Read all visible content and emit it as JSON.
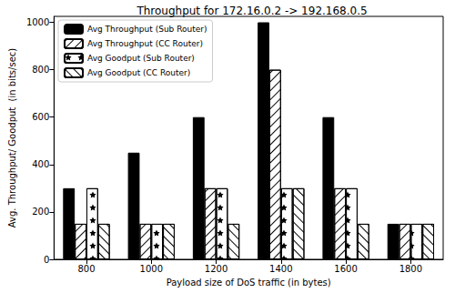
{
  "chart_data": {
    "type": "bar",
    "title": "Throughput for 172.16.0.2 -> 192.168.0.5",
    "x_label": "Payload size of DoS traffic (in bytes)",
    "y_label": "Avg. Throughput/ Goodput  (in bits/sec)",
    "categories": [
      "800",
      "1000",
      "1200",
      "1400",
      "1600",
      "1800"
    ],
    "series": [
      {
        "name": "Avg Throughput (Sub Router)",
        "color": "#000000",
        "marker": "solid",
        "values": [
          300,
          450,
          600,
          1000,
          600,
          150
        ]
      },
      {
        "name": "Avg Throughput (CC Router)",
        "color": "#ffffff",
        "marker": "diagonal",
        "values": [
          150,
          150,
          300,
          800,
          300,
          150
        ]
      },
      {
        "name": "Avg Goodput (Sub Router)",
        "color": "#ffffff",
        "marker": "star",
        "values": [
          300,
          150,
          300,
          300,
          300,
          150
        ]
      },
      {
        "name": "Avg Goodput (CC Router)",
        "color": "#ffffff",
        "marker": "backdiagonal",
        "values": [
          150,
          150,
          150,
          300,
          150,
          150
        ]
      }
    ],
    "ylim": [
      0,
      1025
    ],
    "yticks": [
      0,
      200,
      400,
      600,
      800,
      1000
    ],
    "grid": false,
    "legend": "upper left"
  }
}
